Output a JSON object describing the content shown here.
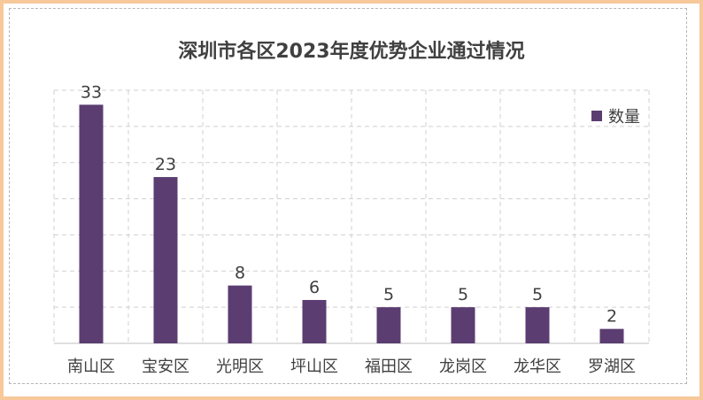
{
  "chart_data": {
    "type": "bar",
    "title": "深圳市各区2023年度优势企业通过情况",
    "categories": [
      "南山区",
      "宝安区",
      "光明区",
      "坪山区",
      "福田区",
      "龙岗区",
      "龙华区",
      "罗湖区"
    ],
    "series": [
      {
        "name": "数量",
        "values": [
          33,
          23,
          8,
          6,
          5,
          5,
          5,
          2
        ]
      }
    ],
    "data_labels": [
      "33",
      "23",
      "8",
      "6",
      "5",
      "5",
      "5",
      "2"
    ],
    "ylim": [
      0,
      35
    ],
    "y_gridline_step": 5,
    "y_tick_labels_visible": false,
    "grid": true,
    "legend_position": "top-right",
    "bar_color": "#5b3d72"
  }
}
